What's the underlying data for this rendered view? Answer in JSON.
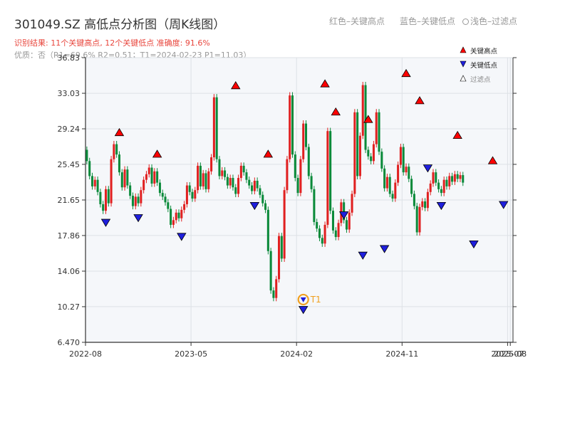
{
  "title": "301049.SZ 高低点分析图（周K线图）",
  "top_legend": {
    "red": "红色–关键高点",
    "blue": "蓝色–关键低点",
    "filtered": "浅色–过滤点"
  },
  "result_text": "识别结果: 11个关键高点, 12个关键低点  准确度: 91.6%",
  "quality_text": "优质：否（R1=69.6%  R2=0.51；T1=2024-02-23 P1=11.03）",
  "inner_legend": [
    "关键高点",
    "关键低点",
    "过滤点"
  ],
  "t1_label": "T1",
  "colors": {
    "up": "#e02020",
    "down": "#0a8a3a",
    "high_marker": "#ff0000",
    "low_marker": "#1f1fdd",
    "t1_ring": "#f0a020",
    "plot_bg": "#f5f7fa",
    "grid": "#dde1e6"
  },
  "chart_data": {
    "type": "candlestick",
    "ylim": [
      6.47,
      36.83
    ],
    "y_ticks": [
      "6.470",
      "10.27",
      "14.06",
      "17.86",
      "21.65",
      "25.45",
      "29.24",
      "33.03",
      "36.83"
    ],
    "y_tick_values": [
      6.47,
      10.27,
      14.06,
      17.86,
      21.65,
      25.45,
      29.24,
      33.03,
      36.83
    ],
    "x_ticks": [
      "2022-08",
      "2023-05",
      "2024-02",
      "2024-11",
      "2025-07",
      "2025-08"
    ],
    "x_tick_weeks": [
      0,
      39,
      78,
      117,
      156,
      157
    ],
    "weeks": 158,
    "candles": [
      [
        27.0,
        25.8
      ],
      [
        25.8,
        24.2
      ],
      [
        24.2,
        23.1
      ],
      [
        23.1,
        23.8
      ],
      [
        23.8,
        22.5
      ],
      [
        22.5,
        21.2
      ],
      [
        21.2,
        20.5
      ],
      [
        20.5,
        22.8
      ],
      [
        22.8,
        21.3
      ],
      [
        21.3,
        26.0
      ],
      [
        26.0,
        27.6
      ],
      [
        27.6,
        26.5
      ],
      [
        26.5,
        24.6
      ],
      [
        24.6,
        23.0
      ],
      [
        23.0,
        24.9
      ],
      [
        24.9,
        23.2
      ],
      [
        23.2,
        22.1
      ],
      [
        22.1,
        21.0
      ],
      [
        21.0,
        22.0
      ],
      [
        22.0,
        21.3
      ],
      [
        21.3,
        22.7
      ],
      [
        22.7,
        23.8
      ],
      [
        23.8,
        24.4
      ],
      [
        24.4,
        25.1
      ],
      [
        25.1,
        23.4
      ],
      [
        23.4,
        24.7
      ],
      [
        24.7,
        23.5
      ],
      [
        23.5,
        22.4
      ],
      [
        22.4,
        22.0
      ],
      [
        22.0,
        21.4
      ],
      [
        21.4,
        20.7
      ],
      [
        20.7,
        19.0
      ],
      [
        19.0,
        19.5
      ],
      [
        19.5,
        20.3
      ],
      [
        20.3,
        19.7
      ],
      [
        19.7,
        20.6
      ],
      [
        20.6,
        21.2
      ],
      [
        21.2,
        23.2
      ],
      [
        23.2,
        22.5
      ],
      [
        22.5,
        21.8
      ],
      [
        21.8,
        22.7
      ],
      [
        22.7,
        25.3
      ],
      [
        25.3,
        23.1
      ],
      [
        23.1,
        24.5
      ],
      [
        24.5,
        22.8
      ],
      [
        22.8,
        24.7
      ],
      [
        24.7,
        26.2
      ],
      [
        26.2,
        32.6
      ],
      [
        32.6,
        26.0
      ],
      [
        26.0,
        24.2
      ],
      [
        24.2,
        24.8
      ],
      [
        24.8,
        24.1
      ],
      [
        24.1,
        23.2
      ],
      [
        23.2,
        24.0
      ],
      [
        24.0,
        23.0
      ],
      [
        23.0,
        22.3
      ],
      [
        22.3,
        24.0
      ],
      [
        24.0,
        25.3
      ],
      [
        25.3,
        24.6
      ],
      [
        24.6,
        23.8
      ],
      [
        23.8,
        23.2
      ],
      [
        23.2,
        22.6
      ],
      [
        22.6,
        23.7
      ],
      [
        23.7,
        22.9
      ],
      [
        22.9,
        22.2
      ],
      [
        22.2,
        21.3
      ],
      [
        21.3,
        20.6
      ],
      [
        20.6,
        16.2
      ],
      [
        16.2,
        12.0
      ],
      [
        12.0,
        11.2
      ],
      [
        11.2,
        13.2
      ],
      [
        13.2,
        17.8
      ],
      [
        17.8,
        15.4
      ],
      [
        15.4,
        22.7
      ],
      [
        22.7,
        26.0
      ],
      [
        26.0,
        32.8
      ],
      [
        32.8,
        26.5
      ],
      [
        26.5,
        24.0
      ],
      [
        24.0,
        22.4
      ],
      [
        22.4,
        26.0
      ],
      [
        26.0,
        29.8
      ],
      [
        29.8,
        27.3
      ],
      [
        27.3,
        24.2
      ],
      [
        24.2,
        22.8
      ],
      [
        22.8,
        19.3
      ],
      [
        19.3,
        18.6
      ],
      [
        18.6,
        17.6
      ],
      [
        17.6,
        17.0
      ],
      [
        17.0,
        19.0
      ],
      [
        19.0,
        29.0
      ],
      [
        29.0,
        20.5
      ],
      [
        20.5,
        18.4
      ],
      [
        18.4,
        17.7
      ],
      [
        17.7,
        19.2
      ],
      [
        19.2,
        21.4
      ],
      [
        21.4,
        19.5
      ],
      [
        19.5,
        18.5
      ],
      [
        18.5,
        20.3
      ],
      [
        20.3,
        22.3
      ],
      [
        22.3,
        31.0
      ],
      [
        31.0,
        24.2
      ],
      [
        24.2,
        28.5
      ],
      [
        28.5,
        33.9
      ],
      [
        33.9,
        27.0
      ],
      [
        27.0,
        26.3
      ],
      [
        26.3,
        25.8
      ],
      [
        25.8,
        27.6
      ],
      [
        27.6,
        31.0
      ],
      [
        31.0,
        26.8
      ],
      [
        26.8,
        25.0
      ],
      [
        25.0,
        22.9
      ],
      [
        22.9,
        24.1
      ],
      [
        24.1,
        22.3
      ],
      [
        22.3,
        21.8
      ],
      [
        21.8,
        23.5
      ],
      [
        23.5,
        25.4
      ],
      [
        25.4,
        27.3
      ],
      [
        27.3,
        24.6
      ],
      [
        24.6,
        25.2
      ],
      [
        25.2,
        23.9
      ],
      [
        23.9,
        22.3
      ],
      [
        22.3,
        21.0
      ],
      [
        21.0,
        18.2
      ],
      [
        18.2,
        20.9
      ],
      [
        20.9,
        21.5
      ],
      [
        21.5,
        20.8
      ],
      [
        20.8,
        22.5
      ],
      [
        22.5,
        23.4
      ],
      [
        23.4,
        24.6
      ],
      [
        24.6,
        23.5
      ],
      [
        23.5,
        22.8
      ],
      [
        22.8,
        22.4
      ],
      [
        22.4,
        23.8
      ],
      [
        23.8,
        23.1
      ],
      [
        23.1,
        24.2
      ],
      [
        24.2,
        23.6
      ],
      [
        23.6,
        24.4
      ],
      [
        24.4,
        23.9
      ],
      [
        23.9,
        24.3
      ],
      [
        24.3,
        23.5
      ]
    ],
    "key_highs": [
      {
        "week": 12,
        "value": 27.6
      },
      {
        "week": 26,
        "value": 25.3
      },
      {
        "week": 55,
        "value": 32.6
      },
      {
        "week": 67,
        "value": 25.3
      },
      {
        "week": 88,
        "value": 32.8
      },
      {
        "week": 92,
        "value": 29.8
      },
      {
        "week": 104,
        "value": 29.0
      },
      {
        "week": 118,
        "value": 33.9
      },
      {
        "week": 123,
        "value": 31.0
      },
      {
        "week": 137,
        "value": 27.3
      },
      {
        "week": 150,
        "value": 24.6
      }
    ],
    "key_lows": [
      {
        "week": 7,
        "value": 20.5
      },
      {
        "week": 19,
        "value": 21.0
      },
      {
        "week": 35,
        "value": 19.0
      },
      {
        "week": 62,
        "value": 22.3
      },
      {
        "week": 80,
        "value": 11.2
      },
      {
        "week": 95,
        "value": 21.3
      },
      {
        "week": 102,
        "value": 17.0
      },
      {
        "week": 110,
        "value": 17.7
      },
      {
        "week": 126,
        "value": 26.3
      },
      {
        "week": 131,
        "value": 22.3
      },
      {
        "week": 143,
        "value": 18.2
      },
      {
        "week": 154,
        "value": 22.4
      }
    ],
    "t1_week": 80,
    "t1_value": 11.03
  }
}
